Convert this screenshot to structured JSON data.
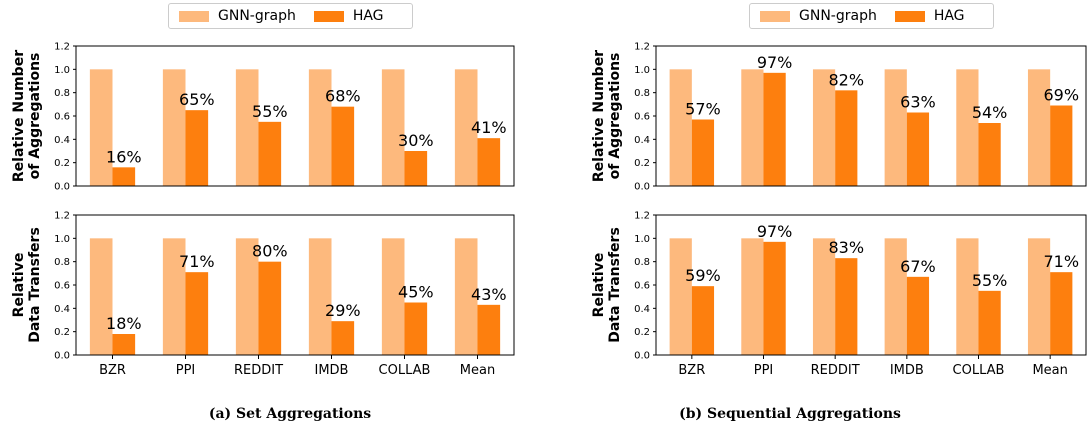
{
  "legend": {
    "series1": "GNN-graph",
    "series2": "HAG"
  },
  "colors": {
    "series1": "#fdb97d",
    "series2": "#fd7f0e"
  },
  "ylabels": {
    "aggregations_line1": "Relative Number",
    "aggregations_line2": "of Aggregations",
    "transfers_line1": "Relative",
    "transfers_line2": "Data Transfers"
  },
  "captions": {
    "a": "(a) Set Aggregations",
    "b": "(b) Sequential Aggregations"
  },
  "chart_data": [
    {
      "type": "bar",
      "panel": "(a) Set Aggregations - aggregations",
      "categories": [
        "BZR",
        "PPI",
        "REDDIT",
        "IMDB",
        "COLLAB",
        "Mean"
      ],
      "series": [
        {
          "name": "GNN-graph",
          "values": [
            1.0,
            1.0,
            1.0,
            1.0,
            1.0,
            1.0
          ]
        },
        {
          "name": "HAG",
          "values": [
            0.16,
            0.65,
            0.55,
            0.68,
            0.3,
            0.41
          ]
        }
      ],
      "data_labels": [
        "16%",
        "65%",
        "55%",
        "68%",
        "30%",
        "41%"
      ],
      "ylabel": "Relative Number of Aggregations",
      "ylim": [
        0,
        1.2
      ],
      "yticks": [
        "0.0",
        "0.2",
        "0.4",
        "0.6",
        "0.8",
        "1.0",
        "1.2"
      ]
    },
    {
      "type": "bar",
      "panel": "(a) Set Aggregations - data transfers",
      "categories": [
        "BZR",
        "PPI",
        "REDDIT",
        "IMDB",
        "COLLAB",
        "Mean"
      ],
      "series": [
        {
          "name": "GNN-graph",
          "values": [
            1.0,
            1.0,
            1.0,
            1.0,
            1.0,
            1.0
          ]
        },
        {
          "name": "HAG",
          "values": [
            0.18,
            0.71,
            0.8,
            0.29,
            0.45,
            0.43
          ]
        }
      ],
      "data_labels": [
        "18%",
        "71%",
        "80%",
        "29%",
        "45%",
        "43%"
      ],
      "ylabel": "Relative Data Transfers",
      "ylim": [
        0,
        1.2
      ],
      "yticks": [
        "0.0",
        "0.2",
        "0.4",
        "0.6",
        "0.8",
        "1.0",
        "1.2"
      ]
    },
    {
      "type": "bar",
      "panel": "(b) Sequential Aggregations - aggregations",
      "categories": [
        "BZR",
        "PPI",
        "REDDIT",
        "IMDB",
        "COLLAB",
        "Mean"
      ],
      "series": [
        {
          "name": "GNN-graph",
          "values": [
            1.0,
            1.0,
            1.0,
            1.0,
            1.0,
            1.0
          ]
        },
        {
          "name": "HAG",
          "values": [
            0.57,
            0.97,
            0.82,
            0.63,
            0.54,
            0.69
          ]
        }
      ],
      "data_labels": [
        "57%",
        "97%",
        "82%",
        "63%",
        "54%",
        "69%"
      ],
      "ylabel": "Relative Number of Aggregations",
      "ylim": [
        0,
        1.2
      ],
      "yticks": [
        "0.0",
        "0.2",
        "0.4",
        "0.6",
        "0.8",
        "1.0",
        "1.2"
      ]
    },
    {
      "type": "bar",
      "panel": "(b) Sequential Aggregations - data transfers",
      "categories": [
        "BZR",
        "PPI",
        "REDDIT",
        "IMDB",
        "COLLAB",
        "Mean"
      ],
      "series": [
        {
          "name": "GNN-graph",
          "values": [
            1.0,
            1.0,
            1.0,
            1.0,
            1.0,
            1.0
          ]
        },
        {
          "name": "HAG",
          "values": [
            0.59,
            0.97,
            0.83,
            0.67,
            0.55,
            0.71
          ]
        }
      ],
      "data_labels": [
        "59%",
        "97%",
        "83%",
        "67%",
        "55%",
        "71%"
      ],
      "ylabel": "Relative Data Transfers",
      "ylim": [
        0,
        1.2
      ],
      "yticks": [
        "0.0",
        "0.2",
        "0.4",
        "0.6",
        "0.8",
        "1.0",
        "1.2"
      ]
    }
  ]
}
